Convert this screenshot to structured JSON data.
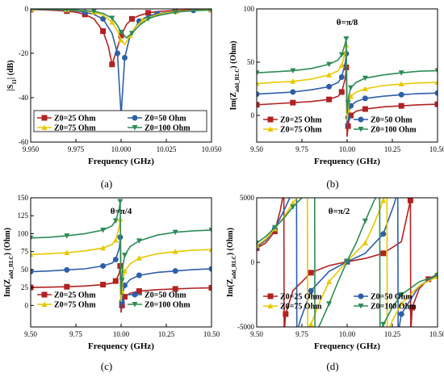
{
  "chart_data": [
    {
      "id": "a",
      "type": "line",
      "caption": "(a)",
      "xlabel": "Frequency (GHz)",
      "ylabel_main": "|S",
      "ylabel_sub": "11",
      "ylabel_end": "| (dB)",
      "annotation": "",
      "xlim": [
        9.95,
        10.05
      ],
      "ylim": [
        -60,
        0
      ],
      "xticks": [
        "9.950",
        "9.975",
        "10.000",
        "10.025",
        "10.050"
      ],
      "xtick_values": [
        9.95,
        9.975,
        10.0,
        10.025,
        10.05
      ],
      "yticks": [
        "-60",
        "-40",
        "-20",
        "0"
      ],
      "ytick_values": [
        -60,
        -40,
        -20,
        0
      ],
      "series": [
        {
          "name": "Z0=25 Ohm",
          "color": "#b22222",
          "marker": "square",
          "x": [
            9.95,
            9.96,
            9.97,
            9.975,
            9.98,
            9.985,
            9.99,
            9.993,
            9.995,
            9.997,
            10.0,
            10.003,
            10.006,
            10.01,
            10.015,
            10.02,
            10.03,
            10.04,
            10.05
          ],
          "y": [
            -0.3,
            -0.5,
            -1.0,
            -1.5,
            -2.5,
            -4.5,
            -10,
            -17,
            -25,
            -20,
            -12,
            -7,
            -4.5,
            -3,
            -1.8,
            -1.2,
            -0.7,
            -0.4,
            -0.3
          ]
        },
        {
          "name": "Z0=50 Ohm",
          "color": "#2e5fa8",
          "marker": "circle",
          "x": [
            9.95,
            9.96,
            9.97,
            9.975,
            9.98,
            9.985,
            9.99,
            9.995,
            9.998,
            10.0,
            10.002,
            10.005,
            10.01,
            10.015,
            10.02,
            10.03,
            10.04,
            10.05
          ],
          "y": [
            -0.2,
            -0.3,
            -0.6,
            -0.9,
            -1.5,
            -2.5,
            -4.5,
            -11,
            -20,
            -48,
            -22,
            -12,
            -5.5,
            -3.2,
            -2.2,
            -1.2,
            -0.7,
            -0.4
          ]
        },
        {
          "name": "Z0=75 Ohm",
          "color": "#e6c800",
          "marker": "triangle",
          "x": [
            9.95,
            9.96,
            9.97,
            9.98,
            9.985,
            9.99,
            9.995,
            9.998,
            10.0,
            10.002,
            10.005,
            10.008,
            10.012,
            10.02,
            10.03,
            10.04,
            10.05
          ],
          "y": [
            -0.1,
            -0.2,
            -0.4,
            -0.9,
            -1.5,
            -2.8,
            -6,
            -10,
            -14,
            -16,
            -12,
            -8,
            -5,
            -2.5,
            -1.2,
            -0.7,
            -0.4
          ]
        },
        {
          "name": "Z0=100 Ohm",
          "color": "#2e8b57",
          "marker": "triangle-down",
          "x": [
            9.95,
            9.96,
            9.97,
            9.98,
            9.985,
            9.99,
            9.995,
            9.998,
            10.0,
            10.003,
            10.006,
            10.01,
            10.015,
            10.02,
            10.03,
            10.04,
            10.05
          ],
          "y": [
            -0.1,
            -0.2,
            -0.3,
            -0.7,
            -1.1,
            -2,
            -4.2,
            -7.5,
            -10.5,
            -13,
            -11,
            -7.5,
            -4.5,
            -3,
            -1.5,
            -0.8,
            -0.5
          ]
        }
      ],
      "legend": {
        "position": "bottom",
        "columns": 2
      }
    },
    {
      "id": "b",
      "type": "line",
      "caption": "(b)",
      "xlabel": "Frequency (GHz)",
      "ylabel_main": "Im(Z",
      "ylabel_sub": "add_RLC",
      "ylabel_end": ") (Ohm)",
      "annotation": "θ=π/8",
      "xlim": [
        9.5,
        10.5
      ],
      "ylim": [
        -25,
        100
      ],
      "xticks": [
        "9.50",
        "9.75",
        "10.00",
        "10.25",
        "10.50"
      ],
      "xtick_values": [
        9.5,
        9.75,
        10.0,
        10.25,
        10.5
      ],
      "yticks": [
        "0",
        "50",
        "100"
      ],
      "ytick_values": [
        0,
        50,
        100
      ],
      "series": [
        {
          "name": "Z0=25 Ohm",
          "color": "#b22222",
          "marker": "square",
          "x": [
            9.5,
            9.6,
            9.7,
            9.8,
            9.9,
            9.95,
            9.97,
            9.99,
            9.995,
            10.0,
            10.005,
            10.01,
            10.02,
            10.05,
            10.1,
            10.2,
            10.3,
            10.4,
            10.5
          ],
          "y": [
            10,
            11,
            12,
            13,
            15,
            18,
            22,
            35,
            45,
            -20,
            -10,
            -5,
            0,
            4,
            6,
            8,
            9,
            10,
            10.5
          ]
        },
        {
          "name": "Z0=50 Ohm",
          "color": "#2e5fa8",
          "marker": "circle",
          "x": [
            9.5,
            9.6,
            9.7,
            9.8,
            9.9,
            9.95,
            9.97,
            9.99,
            9.995,
            10.0,
            10.005,
            10.01,
            10.02,
            10.05,
            10.1,
            10.2,
            10.3,
            10.4,
            10.5
          ],
          "y": [
            20,
            21,
            22,
            24,
            27,
            31,
            36,
            50,
            58,
            -12,
            -2,
            4,
            9,
            13,
            16,
            18,
            19.5,
            20.5,
            21
          ]
        },
        {
          "name": "Z0=75 Ohm",
          "color": "#e6c800",
          "marker": "triangle",
          "x": [
            9.5,
            9.6,
            9.7,
            9.8,
            9.9,
            9.95,
            9.97,
            9.99,
            9.995,
            10.0,
            10.005,
            10.01,
            10.02,
            10.05,
            10.1,
            10.2,
            10.3,
            10.4,
            10.5
          ],
          "y": [
            30,
            31,
            32,
            34,
            38,
            42,
            47,
            60,
            66,
            -5,
            5,
            12,
            18,
            22,
            25,
            28,
            29.5,
            30.5,
            31
          ]
        },
        {
          "name": "Z0=100 Ohm",
          "color": "#2e8b57",
          "marker": "triangle-down",
          "x": [
            9.5,
            9.6,
            9.7,
            9.8,
            9.9,
            9.95,
            9.97,
            9.99,
            9.995,
            10.0,
            10.005,
            10.01,
            10.02,
            10.05,
            10.1,
            10.2,
            10.3,
            10.4,
            10.5
          ],
          "y": [
            40,
            41,
            42,
            44,
            48,
            52,
            57,
            68,
            72,
            2,
            12,
            19,
            26,
            31,
            35,
            38,
            40,
            41.5,
            42
          ]
        }
      ],
      "legend": {
        "position": "bottom",
        "columns": 2
      }
    },
    {
      "id": "c",
      "type": "line",
      "caption": "(c)",
      "xlabel": "Frequency (GHz)",
      "ylabel_main": "Im(Z",
      "ylabel_sub": "add_RLC",
      "ylabel_end": ") (Ohm)",
      "annotation": "θ=π/4",
      "xlim": [
        9.5,
        10.5
      ],
      "ylim": [
        -30,
        150
      ],
      "xticks": [
        "9.50",
        "9.75",
        "10.00",
        "10.25",
        "10.50"
      ],
      "xtick_values": [
        9.5,
        9.75,
        10.0,
        10.25,
        10.5
      ],
      "yticks": [
        "0",
        "25",
        "50",
        "75",
        "100",
        "125",
        "150"
      ],
      "ytick_values": [
        0,
        25,
        50,
        75,
        100,
        125,
        150
      ],
      "series": [
        {
          "name": "Z0=25 Ohm",
          "color": "#b22222",
          "marker": "square",
          "x": [
            9.5,
            9.6,
            9.7,
            9.8,
            9.9,
            9.95,
            9.97,
            9.99,
            9.995,
            10.0,
            10.005,
            10.01,
            10.02,
            10.05,
            10.1,
            10.2,
            10.3,
            10.4,
            10.5
          ],
          "y": [
            25,
            25.5,
            26,
            27,
            29,
            31,
            34,
            45,
            55,
            -10,
            0,
            6,
            12,
            17,
            20,
            22,
            23,
            24,
            24.5
          ]
        },
        {
          "name": "Z0=50 Ohm",
          "color": "#2e5fa8",
          "marker": "circle",
          "x": [
            9.5,
            9.6,
            9.7,
            9.8,
            9.9,
            9.95,
            9.97,
            9.99,
            9.995,
            10.0,
            10.005,
            10.01,
            10.02,
            10.05,
            10.1,
            10.2,
            10.3,
            10.4,
            10.5
          ],
          "y": [
            47,
            48,
            49.5,
            51,
            55,
            59,
            64,
            80,
            95,
            -5,
            5,
            18,
            28,
            36,
            42,
            46,
            48,
            50,
            51
          ]
        },
        {
          "name": "Z0=75 Ohm",
          "color": "#e6c800",
          "marker": "triangle",
          "x": [
            9.5,
            9.6,
            9.7,
            9.8,
            9.9,
            9.95,
            9.97,
            9.99,
            9.995,
            10.0,
            10.005,
            10.01,
            10.02,
            10.05,
            10.1,
            10.2,
            10.3,
            10.4,
            10.5
          ],
          "y": [
            71,
            72,
            73.5,
            76,
            80,
            85,
            91,
            110,
            120,
            5,
            20,
            35,
            48,
            58,
            66,
            72,
            75,
            77,
            78
          ]
        },
        {
          "name": "Z0=100 Ohm",
          "color": "#2e8b57",
          "marker": "triangle-down",
          "x": [
            9.5,
            9.6,
            9.7,
            9.8,
            9.9,
            9.95,
            9.97,
            9.99,
            9.995,
            10.0,
            10.005,
            10.01,
            10.02,
            10.05,
            10.1,
            10.2,
            10.3,
            10.4,
            10.5
          ],
          "y": [
            94,
            95,
            97,
            100,
            105,
            111,
            118,
            135,
            145,
            15,
            35,
            55,
            70,
            82,
            90,
            98,
            102,
            104,
            105
          ]
        }
      ],
      "legend": {
        "position": "bottom",
        "columns": 2
      }
    },
    {
      "id": "d",
      "type": "line",
      "caption": "(d)",
      "xlabel": "Frequency (GHz)",
      "ylabel_main": "Im(Z",
      "ylabel_sub": "add_RLC",
      "ylabel_end": ") (Ohm)",
      "annotation": "θ=π/2",
      "xlim": [
        9.5,
        10.5
      ],
      "ylim": [
        -5000,
        5000
      ],
      "xticks": [
        "9.50",
        "9.75",
        "10.00",
        "10.25",
        "10.50"
      ],
      "xtick_values": [
        9.5,
        9.75,
        10.0,
        10.25,
        10.5
      ],
      "yticks": [
        "-5000",
        "0",
        "5000"
      ],
      "ytick_values": [
        -5000,
        0,
        5000
      ],
      "series": [
        {
          "name": "Z0=25 Ohm",
          "color": "#b22222",
          "marker": "square",
          "x": [
            9.5,
            9.55,
            9.6,
            9.63,
            9.65,
            9.652,
            9.66,
            9.7,
            9.8,
            9.9,
            10.0,
            10.1,
            10.2,
            10.3,
            10.35,
            10.352,
            10.36,
            10.4,
            10.45,
            10.5
          ],
          "y": [
            1100,
            1500,
            2400,
            4000,
            5500,
            -5500,
            -4000,
            -2200,
            -800,
            -250,
            50,
            300,
            700,
            1600,
            4800,
            -5500,
            -3500,
            -2000,
            -1300,
            -900
          ]
        },
        {
          "name": "Z0=50 Ohm",
          "color": "#2e5fa8",
          "marker": "circle",
          "x": [
            9.5,
            9.55,
            9.6,
            9.65,
            9.7,
            9.72,
            9.722,
            9.74,
            9.8,
            9.9,
            10.0,
            10.1,
            10.2,
            10.26,
            10.28,
            10.282,
            10.3,
            10.4,
            10.5
          ],
          "y": [
            1200,
            1700,
            2600,
            4000,
            5500,
            7000,
            -5500,
            -4500,
            -2200,
            -700,
            50,
            700,
            2200,
            4500,
            5500,
            -5500,
            -4000,
            -1800,
            -1000
          ]
        },
        {
          "name": "Z0=75 Ohm",
          "color": "#e6c800",
          "marker": "triangle",
          "x": [
            9.5,
            9.55,
            9.6,
            9.65,
            9.7,
            9.75,
            9.78,
            9.782,
            9.8,
            9.85,
            9.9,
            10.0,
            10.1,
            10.15,
            10.2,
            10.22,
            10.222,
            10.25,
            10.3,
            10.4,
            10.5
          ],
          "y": [
            1300,
            1800,
            2600,
            3500,
            4600,
            5500,
            7000,
            -5500,
            -4800,
            -3000,
            -1500,
            100,
            1500,
            3000,
            4800,
            5500,
            -5500,
            -4500,
            -3200,
            -1800,
            -1100
          ]
        },
        {
          "name": "Z0=100 Ohm",
          "color": "#2e8b57",
          "marker": "triangle-down",
          "x": [
            9.5,
            9.55,
            9.6,
            9.65,
            9.7,
            9.75,
            9.8,
            9.82,
            9.822,
            9.85,
            9.9,
            9.95,
            10.0,
            10.05,
            10.1,
            10.15,
            10.18,
            10.182,
            10.2,
            10.25,
            10.3,
            10.4,
            10.5
          ],
          "y": [
            1500,
            2000,
            2700,
            3400,
            4300,
            5000,
            5500,
            7000,
            -5500,
            -4800,
            -3200,
            -1500,
            100,
            1500,
            3200,
            4800,
            5500,
            -5500,
            -4800,
            -3500,
            -2500,
            -1500,
            -1000
          ]
        }
      ],
      "legend": {
        "position": "bottom",
        "columns": 2
      }
    }
  ]
}
